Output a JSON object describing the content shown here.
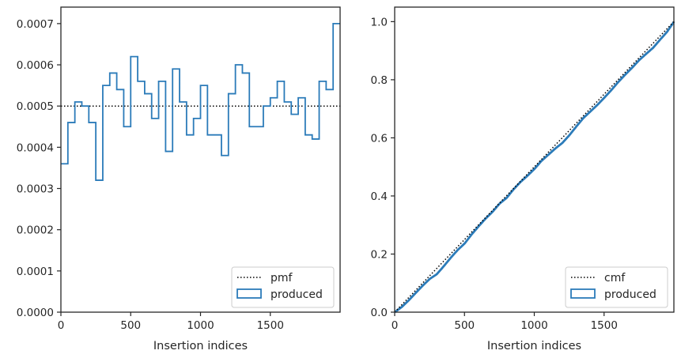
{
  "chart_data": [
    {
      "type": "step",
      "xlabel": "Insertion indices",
      "ylabel": "",
      "xlim": [
        0,
        2000
      ],
      "ylim": [
        0,
        0.00074
      ],
      "x_ticks": [
        0,
        500,
        1000,
        1500
      ],
      "x_tick_labels": [
        "0",
        "500",
        "1000",
        "1500"
      ],
      "y_ticks": [
        0,
        0.0001,
        0.0002,
        0.0003,
        0.0004,
        0.0005,
        0.0006,
        0.0007
      ],
      "y_tick_labels": [
        "0.0000",
        "0.0001",
        "0.0002",
        "0.0003",
        "0.0004",
        "0.0005",
        "0.0006",
        "0.0007"
      ],
      "legend": {
        "placement": "lower-right",
        "entries": [
          "pmf",
          "produced"
        ]
      },
      "reference_line": {
        "name": "pmf",
        "value": 0.0005,
        "style": "dotted",
        "color": "#000000"
      },
      "series": [
        {
          "name": "produced",
          "color": "#2b7bb9",
          "bin_width": 50,
          "bin_starts": [
            0,
            50,
            100,
            150,
            200,
            250,
            300,
            350,
            400,
            450,
            500,
            550,
            600,
            650,
            700,
            750,
            800,
            850,
            900,
            950,
            1000,
            1050,
            1100,
            1150,
            1200,
            1250,
            1300,
            1350,
            1400,
            1450,
            1500,
            1550,
            1600,
            1650,
            1700,
            1750,
            1800,
            1850,
            1900,
            1950
          ],
          "values": [
            0.00036,
            0.00046,
            0.00051,
            0.0005,
            0.00046,
            0.00032,
            0.00055,
            0.00058,
            0.00054,
            0.00045,
            0.00062,
            0.00056,
            0.00053,
            0.00047,
            0.00056,
            0.00039,
            0.00059,
            0.00051,
            0.00043,
            0.00047,
            0.00055,
            0.00043,
            0.00043,
            0.00038,
            0.00053,
            0.0006,
            0.00058,
            0.00045,
            0.00045,
            0.0005,
            0.00052,
            0.00056,
            0.00051,
            0.00048,
            0.00052,
            0.00043,
            0.00042,
            0.00056,
            0.00054,
            0.0007
          ]
        }
      ]
    },
    {
      "type": "step",
      "xlabel": "Insertion indices",
      "ylabel": "",
      "xlim": [
        0,
        2000
      ],
      "ylim": [
        0,
        1.05
      ],
      "x_ticks": [
        0,
        500,
        1000,
        1500
      ],
      "x_tick_labels": [
        "0",
        "500",
        "1000",
        "1500"
      ],
      "y_ticks": [
        0,
        0.2,
        0.4,
        0.6,
        0.8,
        1.0
      ],
      "y_tick_labels": [
        "0.0",
        "0.2",
        "0.4",
        "0.6",
        "0.8",
        "1.0"
      ],
      "legend": {
        "placement": "lower-right",
        "entries": [
          "cmf",
          "produced"
        ]
      },
      "reference_line": {
        "name": "cmf",
        "from": [
          0,
          0
        ],
        "to": [
          2000,
          1.0
        ],
        "style": "dotted",
        "color": "#000000"
      },
      "series": [
        {
          "name": "produced",
          "color": "#2b7bb9",
          "cumulative_of": "produced histogram"
        }
      ]
    }
  ]
}
